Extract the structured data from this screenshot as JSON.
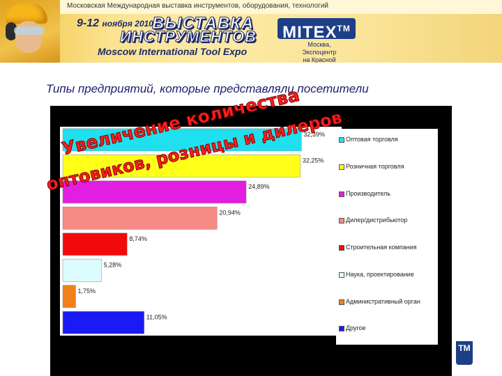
{
  "banner": {
    "top_strip": "Московская Международная выставка инструментов, оборудования, технологий",
    "dates": "9-12",
    "month": "ноября 2010",
    "title_line1": "ВЫСТАВКА",
    "title_line2": "ИНСТРУМЕНТОВ",
    "english_title": "Moscow International Tool Expo",
    "logo": "MITEX",
    "logo_tm": "TM",
    "venue_line1": "Москва, Экспоцентр",
    "venue_line2": "на Красной Пресне"
  },
  "heading": "Типы предприятий, которые представляли посетители",
  "overlay": {
    "line1": "Увеличение количества",
    "line2": "оптовиков, розницы и дилеров"
  },
  "corner_tm": "TM",
  "chart_data": {
    "type": "bar",
    "orientation": "horizontal",
    "categories": [
      "Оптовая торговля",
      "Розничная торговля",
      "Производитель",
      "Дилер/дистрибьютор",
      "Строительная компания",
      "Наука, проектирование",
      "Административный орган",
      "Другое"
    ],
    "values": [
      32.39,
      32.25,
      24.89,
      20.94,
      8.74,
      5.28,
      1.75,
      11.05
    ],
    "value_labels": [
      "32,39%",
      "32,25%",
      "24,89%",
      "20,94%",
      "8,74%",
      "5,28%",
      "1,75%",
      "11,05%"
    ],
    "colors": [
      "#1fe0ef",
      "#ffff1a",
      "#e21ee0",
      "#f58a86",
      "#f20a0a",
      "#dcfcff",
      "#f0801a",
      "#1a1af5"
    ],
    "xlim": [
      0,
      35
    ],
    "legend_position": "right",
    "grid": false
  }
}
